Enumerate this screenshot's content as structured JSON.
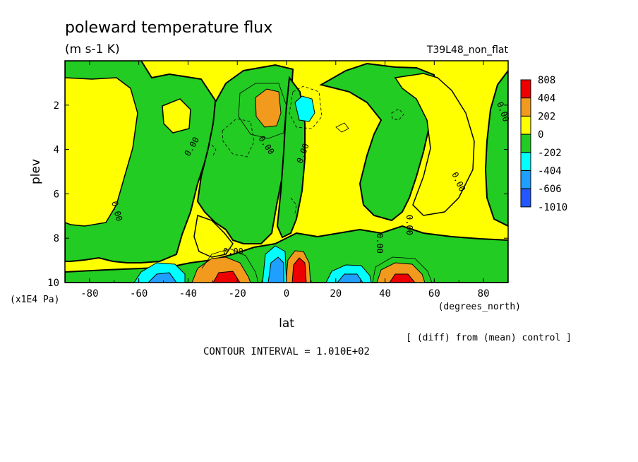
{
  "chart_data": {
    "type": "heatmap",
    "title": "poleward temperature flux",
    "units": "(m s-1 K)",
    "run_label": "T39L48_non_flat",
    "xlabel": "lat",
    "x_units": "(degrees_north)",
    "ylabel": "plev",
    "y_units": "(x1E4 Pa)",
    "xlim": [
      -90,
      90
    ],
    "ylim": [
      0,
      10
    ],
    "y_inverted": true,
    "x_ticks": [
      "-80",
      "-60",
      "-40",
      "-20",
      "0",
      "20",
      "40",
      "60",
      "80"
    ],
    "y_ticks": [
      "2",
      "4",
      "6",
      "8",
      "10"
    ],
    "contour_interval_text": "CONTOUR INTERVAL = 1.010E+02",
    "footnote": "[ (diff) from (mean) control ]",
    "contour_label": "0.00",
    "colorbar": {
      "labels": [
        "808",
        "404",
        "202",
        "0",
        "-202",
        "-404",
        "-606",
        "-1010"
      ],
      "colors": [
        "#ee0000",
        "#f29a1d",
        "#ffff00",
        "#22cc22",
        "#00ffff",
        "#1f9fff",
        "#2357ff"
      ]
    },
    "features": [
      {
        "lat": 5,
        "plev": 9.5,
        "value": 808
      },
      {
        "lat": -25,
        "plev": 9.5,
        "value": 404
      },
      {
        "lat": 44,
        "plev": 9.5,
        "value": 404
      },
      {
        "lat": -8,
        "plev": 2.1,
        "value": 202
      },
      {
        "lat": -44,
        "plev": 9.6,
        "value": -404
      },
      {
        "lat": 26,
        "plev": 9.6,
        "value": -404
      },
      {
        "lat": -4,
        "plev": 9.3,
        "value": -606
      },
      {
        "lat": 7,
        "plev": 2.3,
        "value": -404
      }
    ]
  }
}
